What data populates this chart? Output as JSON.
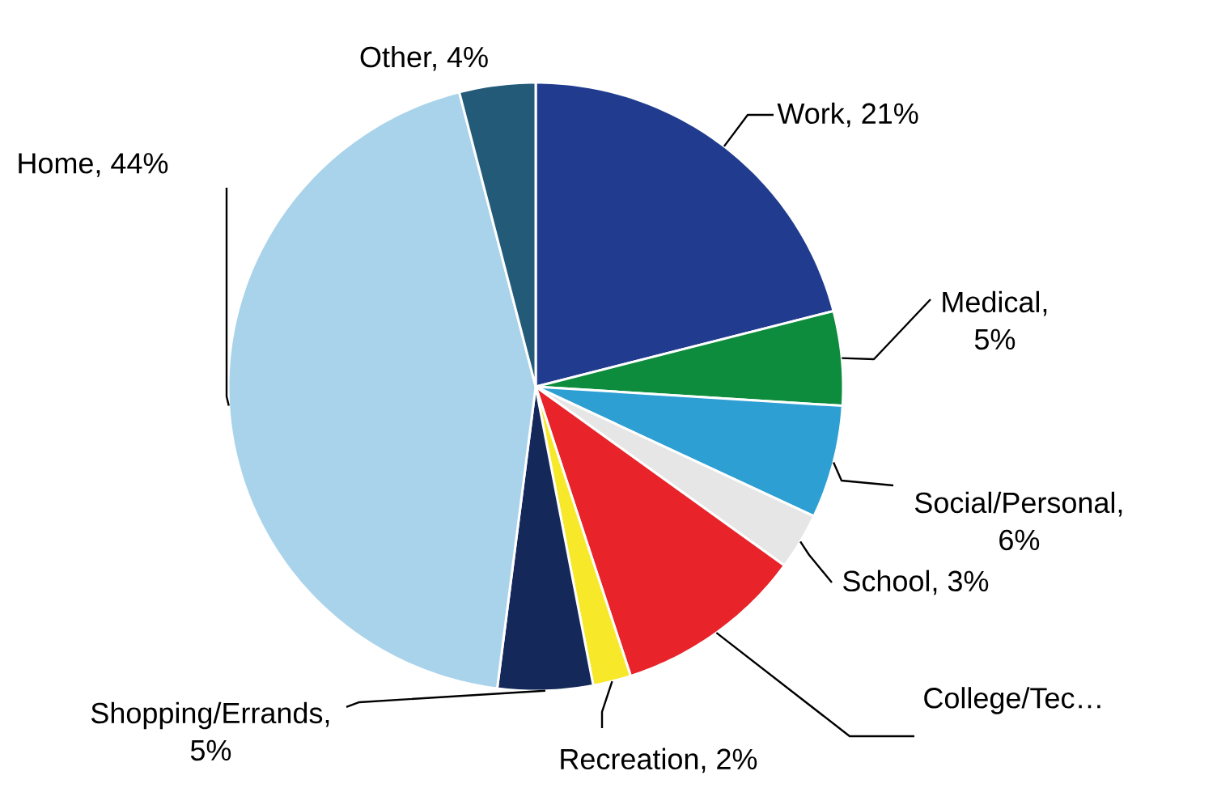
{
  "chart_data": {
    "type": "pie",
    "categories": [
      "Work, 21%",
      "Medical, 5%",
      "Social/Personal, 6%",
      "School, 3%",
      "College/Tec…",
      "Recreation, 2%",
      "Shopping/Errands, 5%",
      "Home, 44%",
      "Other, 4%"
    ],
    "values": [
      21,
      5,
      6,
      3,
      10,
      2,
      5,
      44,
      4
    ],
    "colors": [
      "#213c8f",
      "#0c8c3c",
      "#2e9fd3",
      "#e6e6e6",
      "#e8232a",
      "#f7e82a",
      "#14285a",
      "#a9d3ea",
      "#225a78"
    ]
  }
}
